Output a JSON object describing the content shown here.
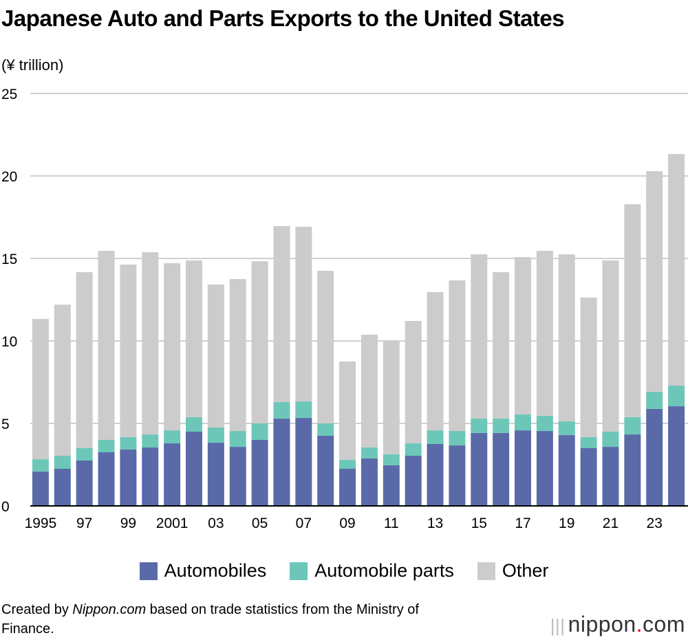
{
  "chart_data": {
    "type": "bar",
    "stacked": true,
    "title": "Japanese Auto and Parts Exports to the United States",
    "ylabel": "(¥ trillion)",
    "xlabel": "",
    "ylim": [
      0,
      25
    ],
    "yticks": [
      0,
      5,
      10,
      15,
      20,
      25
    ],
    "grid": true,
    "legend_position": "bottom",
    "categories": [
      "1995",
      "1996",
      "1997",
      "1998",
      "1999",
      "2000",
      "2001",
      "2002",
      "2003",
      "2004",
      "2005",
      "2006",
      "2007",
      "2008",
      "2009",
      "2010",
      "2011",
      "2012",
      "2013",
      "2014",
      "2015",
      "2016",
      "2017",
      "2018",
      "2019",
      "2020",
      "2021",
      "2022",
      "2023",
      "2024"
    ],
    "tick_labels": [
      "1995",
      "",
      "97",
      "",
      "99",
      "",
      "2001",
      "",
      "03",
      "",
      "05",
      "",
      "07",
      "",
      "09",
      "",
      "11",
      "",
      "13",
      "",
      "15",
      "",
      "17",
      "",
      "19",
      "",
      "21",
      "",
      "23",
      ""
    ],
    "series": [
      {
        "name": "Automobiles",
        "color": "#5a6aa8",
        "values": [
          2.08,
          2.25,
          2.75,
          3.25,
          3.42,
          3.54,
          3.79,
          4.5,
          3.83,
          3.58,
          4.0,
          5.29,
          5.33,
          4.25,
          2.25,
          2.88,
          2.46,
          3.04,
          3.75,
          3.67,
          4.42,
          4.42,
          4.58,
          4.54,
          4.29,
          3.5,
          3.58,
          4.33,
          5.88,
          6.04
        ]
      },
      {
        "name": "Automobile parts",
        "color": "#6cc7b9",
        "values": [
          0.75,
          0.79,
          0.75,
          0.75,
          0.75,
          0.79,
          0.79,
          0.88,
          0.92,
          0.96,
          1.0,
          1.0,
          1.0,
          0.75,
          0.54,
          0.66,
          0.67,
          0.75,
          0.83,
          0.87,
          0.87,
          0.87,
          0.96,
          0.92,
          0.84,
          0.67,
          0.92,
          1.05,
          1.04,
          1.25
        ]
      },
      {
        "name": "Other",
        "color": "#cccccc",
        "values": [
          8.5,
          9.16,
          10.67,
          11.46,
          10.46,
          11.05,
          10.13,
          9.5,
          8.67,
          9.21,
          9.83,
          10.67,
          10.59,
          9.25,
          5.96,
          6.84,
          6.87,
          7.42,
          8.38,
          9.13,
          9.96,
          8.88,
          9.54,
          10.0,
          10.12,
          8.46,
          10.38,
          12.91,
          13.37,
          14.04
        ]
      }
    ]
  },
  "footer": {
    "pre": "Created by ",
    "site": "Nippon.com",
    "post": " based on trade statistics from the Ministry of Finance."
  },
  "logo": {
    "name": "nippon",
    "dot": ".",
    "tld": "com"
  }
}
